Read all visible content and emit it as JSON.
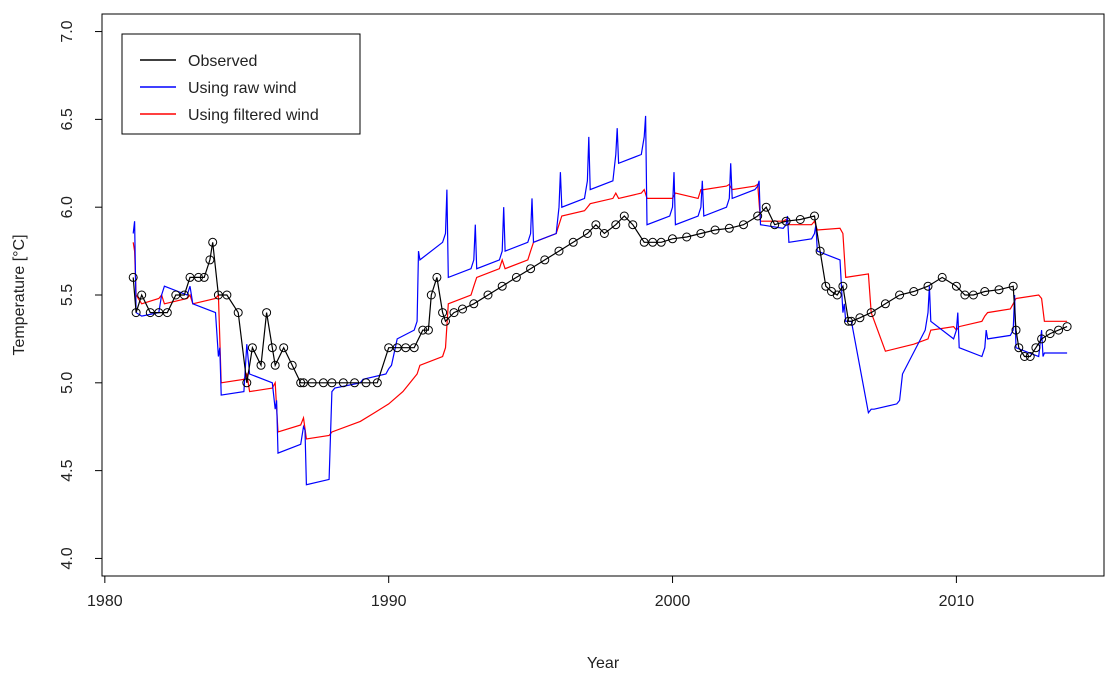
{
  "chart_data": {
    "type": "line",
    "xlabel": "Year",
    "ylabel": "Temperature [°C]",
    "xlim": [
      1979.9,
      2015.2
    ],
    "ylim": [
      3.9,
      7.1
    ],
    "xticks": [
      1980,
      1990,
      2000,
      2010
    ],
    "yticks": [
      4.0,
      4.5,
      5.0,
      5.5,
      6.0,
      6.5,
      7.0
    ],
    "xtick_labels": [
      "1980",
      "1990",
      "2000",
      "2010"
    ],
    "ytick_labels": [
      "4.0",
      "4.5",
      "5.0",
      "5.5",
      "6.0",
      "6.5",
      "7.0"
    ],
    "legend": {
      "position": "top-left",
      "items": [
        {
          "label": "Observed",
          "color": "#000000"
        },
        {
          "label": "Using raw wind",
          "color": "#0000ff"
        },
        {
          "label": "Using filtered wind",
          "color": "#ff0000"
        }
      ]
    },
    "series": [
      {
        "name": "Observed",
        "color": "#000000",
        "marker": "open-circle",
        "x": [
          1981.0,
          1981.1,
          1981.3,
          1981.6,
          1981.9,
          1982.2,
          1982.5,
          1982.8,
          1983.0,
          1983.3,
          1983.5,
          1983.7,
          1983.8,
          1984.0,
          1984.3,
          1984.7,
          1985.0,
          1985.2,
          1985.5,
          1985.7,
          1985.9,
          1986.0,
          1986.3,
          1986.6,
          1986.9,
          1987.0,
          1987.3,
          1987.7,
          1988.0,
          1988.4,
          1988.8,
          1989.2,
          1989.6,
          1990.0,
          1990.3,
          1990.6,
          1990.9,
          1991.2,
          1991.4,
          1991.5,
          1991.7,
          1991.9,
          1992.0,
          1992.3,
          1992.6,
          1993.0,
          1993.5,
          1994.0,
          1994.5,
          1995.0,
          1995.5,
          1996.0,
          1996.5,
          1997.0,
          1997.3,
          1997.6,
          1998.0,
          1998.3,
          1998.6,
          1999.0,
          1999.3,
          1999.6,
          2000.0,
          2000.5,
          2001.0,
          2001.5,
          2002.0,
          2002.5,
          2003.0,
          2003.3,
          2003.6,
          2004.0,
          2004.5,
          2005.0,
          2005.2,
          2005.4,
          2005.6,
          2005.8,
          2006.0,
          2006.2,
          2006.3,
          2006.6,
          2007.0,
          2007.5,
          2008.0,
          2008.5,
          2009.0,
          2009.5,
          2010.0,
          2010.3,
          2010.6,
          2011.0,
          2011.5,
          2012.0,
          2012.1,
          2012.2,
          2012.4,
          2012.6,
          2012.8,
          2013.0,
          2013.3,
          2013.6,
          2013.9
        ],
        "values": [
          5.6,
          5.4,
          5.5,
          5.4,
          5.4,
          5.4,
          5.5,
          5.5,
          5.6,
          5.6,
          5.6,
          5.7,
          5.8,
          5.5,
          5.5,
          5.4,
          5.0,
          5.2,
          5.1,
          5.4,
          5.2,
          5.1,
          5.2,
          5.1,
          5.0,
          5.0,
          5.0,
          5.0,
          5.0,
          5.0,
          5.0,
          5.0,
          5.0,
          5.2,
          5.2,
          5.2,
          5.2,
          5.3,
          5.3,
          5.5,
          5.6,
          5.4,
          5.35,
          5.4,
          5.42,
          5.45,
          5.5,
          5.55,
          5.6,
          5.65,
          5.7,
          5.75,
          5.8,
          5.85,
          5.9,
          5.85,
          5.9,
          5.95,
          5.9,
          5.8,
          5.8,
          5.8,
          5.82,
          5.83,
          5.85,
          5.87,
          5.88,
          5.9,
          5.95,
          6.0,
          5.9,
          5.92,
          5.93,
          5.95,
          5.75,
          5.55,
          5.52,
          5.5,
          5.55,
          5.35,
          5.35,
          5.37,
          5.4,
          5.45,
          5.5,
          5.52,
          5.55,
          5.6,
          5.55,
          5.5,
          5.5,
          5.52,
          5.53,
          5.55,
          5.3,
          5.2,
          5.15,
          5.15,
          5.2,
          5.25,
          5.28,
          5.3,
          5.32
        ]
      },
      {
        "name": "Using raw wind",
        "color": "#0000ff",
        "x": [
          1981.0,
          1981.05,
          1981.1,
          1981.3,
          1981.9,
          1982.0,
          1982.1,
          1982.9,
          1983.0,
          1983.1,
          1983.9,
          1984.0,
          1984.05,
          1984.1,
          1984.9,
          1985.0,
          1985.1,
          1985.9,
          1986.0,
          1986.05,
          1986.1,
          1986.9,
          1987.0,
          1987.05,
          1987.1,
          1987.9,
          1988.0,
          1988.1,
          1989.0,
          1989.1,
          1989.9,
          1990.0,
          1990.1,
          1990.3,
          1990.9,
          1991.0,
          1991.05,
          1991.1,
          1991.9,
          1992.0,
          1992.05,
          1992.1,
          1992.9,
          1993.0,
          1993.05,
          1993.1,
          1993.9,
          1994.0,
          1994.05,
          1994.1,
          1994.9,
          1995.0,
          1995.05,
          1995.1,
          1995.9,
          1996.0,
          1996.05,
          1996.1,
          1996.9,
          1997.0,
          1997.05,
          1997.1,
          1997.9,
          1998.0,
          1998.05,
          1998.1,
          1998.9,
          1999.0,
          1999.05,
          1999.1,
          1999.9,
          2000.0,
          2000.05,
          2000.1,
          2000.9,
          2001.0,
          2001.05,
          2001.1,
          2001.9,
          2002.0,
          2002.05,
          2002.1,
          2002.9,
          2003.0,
          2003.05,
          2003.1,
          2003.9,
          2004.0,
          2004.05,
          2004.1,
          2004.9,
          2005.0,
          2005.05,
          2005.1,
          2005.9,
          2006.0,
          2006.05,
          2006.1,
          2006.3,
          2006.9,
          2007.0,
          2007.1,
          2007.9,
          2008.0,
          2008.1,
          2008.9,
          2009.0,
          2009.05,
          2009.1,
          2009.9,
          2010.0,
          2010.05,
          2010.1,
          2010.9,
          2011.0,
          2011.05,
          2011.1,
          2011.9,
          2012.0,
          2012.05,
          2012.1,
          2012.9,
          2013.0,
          2013.05,
          2013.1,
          2013.9
        ],
        "values": [
          5.85,
          5.92,
          5.4,
          5.38,
          5.4,
          5.5,
          5.55,
          5.5,
          5.55,
          5.45,
          5.4,
          5.15,
          5.2,
          4.93,
          4.95,
          5.22,
          5.05,
          5.0,
          4.85,
          4.9,
          4.6,
          4.65,
          4.75,
          4.73,
          4.42,
          4.45,
          4.95,
          4.97,
          5.0,
          5.02,
          5.05,
          5.08,
          5.1,
          5.25,
          5.3,
          5.35,
          5.75,
          5.7,
          5.8,
          5.85,
          6.1,
          5.6,
          5.65,
          5.7,
          5.9,
          5.65,
          5.7,
          5.75,
          6.0,
          5.75,
          5.8,
          5.85,
          6.05,
          5.8,
          5.85,
          6.0,
          6.2,
          6.0,
          6.05,
          6.15,
          6.4,
          6.1,
          6.15,
          6.3,
          6.45,
          6.25,
          6.3,
          6.4,
          6.52,
          5.9,
          5.95,
          6.0,
          6.2,
          5.9,
          5.95,
          6.0,
          6.15,
          5.95,
          6.0,
          6.05,
          6.25,
          6.05,
          6.1,
          6.12,
          6.15,
          5.9,
          5.88,
          5.9,
          5.95,
          5.8,
          5.82,
          5.85,
          5.9,
          5.75,
          5.7,
          5.4,
          5.45,
          5.35,
          5.35,
          4.83,
          4.85,
          4.85,
          4.88,
          4.9,
          5.05,
          5.3,
          5.4,
          5.55,
          5.35,
          5.25,
          5.3,
          5.4,
          5.2,
          5.15,
          5.2,
          5.3,
          5.25,
          5.27,
          5.3,
          5.5,
          5.2,
          5.15,
          5.3,
          5.15,
          5.17,
          5.17
        ]
      },
      {
        "name": "Using filtered wind",
        "color": "#ff0000",
        "x": [
          1981.0,
          1981.05,
          1981.1,
          1981.3,
          1981.9,
          1982.0,
          1982.1,
          1982.9,
          1983.0,
          1983.1,
          1983.9,
          1984.0,
          1984.1,
          1984.9,
          1985.0,
          1985.1,
          1985.9,
          1986.0,
          1986.1,
          1986.9,
          1987.0,
          1987.1,
          1987.9,
          1988.0,
          1989.0,
          1989.5,
          1990.0,
          1990.5,
          1991.0,
          1991.1,
          1991.9,
          1992.0,
          1992.1,
          1992.9,
          1993.0,
          1993.1,
          1993.9,
          1994.0,
          1994.1,
          1994.9,
          1995.0,
          1995.1,
          1995.9,
          1996.0,
          1996.1,
          1996.9,
          1997.0,
          1997.1,
          1997.9,
          1998.0,
          1998.1,
          1998.9,
          1999.0,
          1999.1,
          1999.9,
          2000.0,
          2000.1,
          2000.9,
          2001.0,
          2001.1,
          2001.9,
          2002.0,
          2002.1,
          2002.9,
          2003.0,
          2003.1,
          2003.9,
          2004.0,
          2004.1,
          2004.9,
          2005.0,
          2005.1,
          2005.9,
          2006.0,
          2006.1,
          2006.9,
          2007.0,
          2007.5,
          2008.0,
          2008.5,
          2009.0,
          2009.1,
          2009.9,
          2010.0,
          2010.1,
          2010.9,
          2011.0,
          2011.1,
          2011.9,
          2012.0,
          2012.1,
          2012.9,
          2013.0,
          2013.1,
          2013.9
        ],
        "values": [
          5.8,
          5.75,
          5.5,
          5.45,
          5.48,
          5.5,
          5.45,
          5.48,
          5.5,
          5.45,
          5.48,
          5.5,
          5.0,
          5.02,
          5.05,
          4.95,
          4.97,
          5.0,
          4.72,
          4.76,
          4.8,
          4.68,
          4.7,
          4.72,
          4.78,
          4.83,
          4.88,
          4.95,
          5.05,
          5.1,
          5.15,
          5.2,
          5.45,
          5.5,
          5.55,
          5.6,
          5.65,
          5.7,
          5.65,
          5.7,
          5.75,
          5.8,
          5.85,
          5.9,
          5.95,
          5.98,
          6.0,
          6.02,
          6.05,
          6.08,
          6.05,
          6.08,
          6.1,
          6.05,
          6.05,
          6.05,
          6.08,
          6.05,
          6.1,
          6.1,
          6.12,
          6.13,
          6.1,
          6.12,
          6.13,
          5.92,
          5.92,
          5.93,
          5.9,
          5.9,
          5.92,
          5.87,
          5.88,
          5.85,
          5.6,
          5.62,
          5.4,
          5.18,
          5.2,
          5.22,
          5.25,
          5.3,
          5.32,
          5.3,
          5.32,
          5.35,
          5.38,
          5.4,
          5.42,
          5.45,
          5.48,
          5.5,
          5.48,
          5.35,
          5.35
        ]
      }
    ]
  }
}
